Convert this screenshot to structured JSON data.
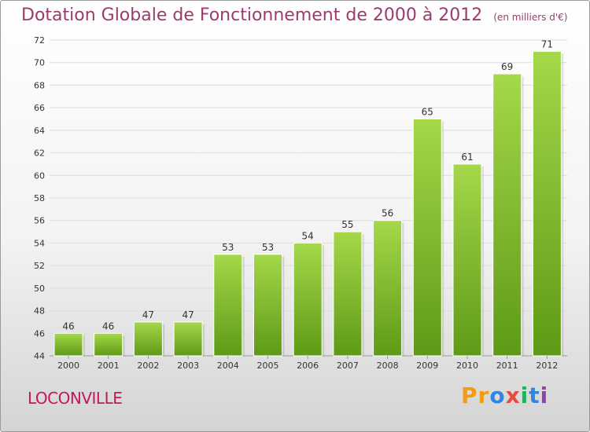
{
  "chart_data": {
    "type": "bar",
    "title": "Dotation Globale de Fonctionnement de 2000 à 2012",
    "unit": "(en milliers d'€)",
    "categories": [
      "2000",
      "2001",
      "2002",
      "2003",
      "2004",
      "2005",
      "2006",
      "2007",
      "2008",
      "2009",
      "2010",
      "2011",
      "2012"
    ],
    "values": [
      46,
      46,
      47,
      47,
      53,
      53,
      54,
      55,
      56,
      65,
      61,
      69,
      71
    ],
    "ylim": [
      44,
      72
    ],
    "yticks": [
      44,
      46,
      48,
      50,
      52,
      54,
      56,
      58,
      60,
      62,
      64,
      66,
      68,
      70,
      72
    ],
    "xlabel": "",
    "ylabel": "",
    "grid": true,
    "bar_color": "#7ab82e"
  },
  "commune": "LOCONVILLE",
  "brand": {
    "letters": [
      "P",
      "r",
      "o",
      "x",
      "i",
      "t",
      "i"
    ],
    "colors": [
      "#f39c12",
      "#f39c12",
      "#2e86de",
      "#e74c3c",
      "#27ae60",
      "#2e86de",
      "#8e44ad"
    ]
  }
}
